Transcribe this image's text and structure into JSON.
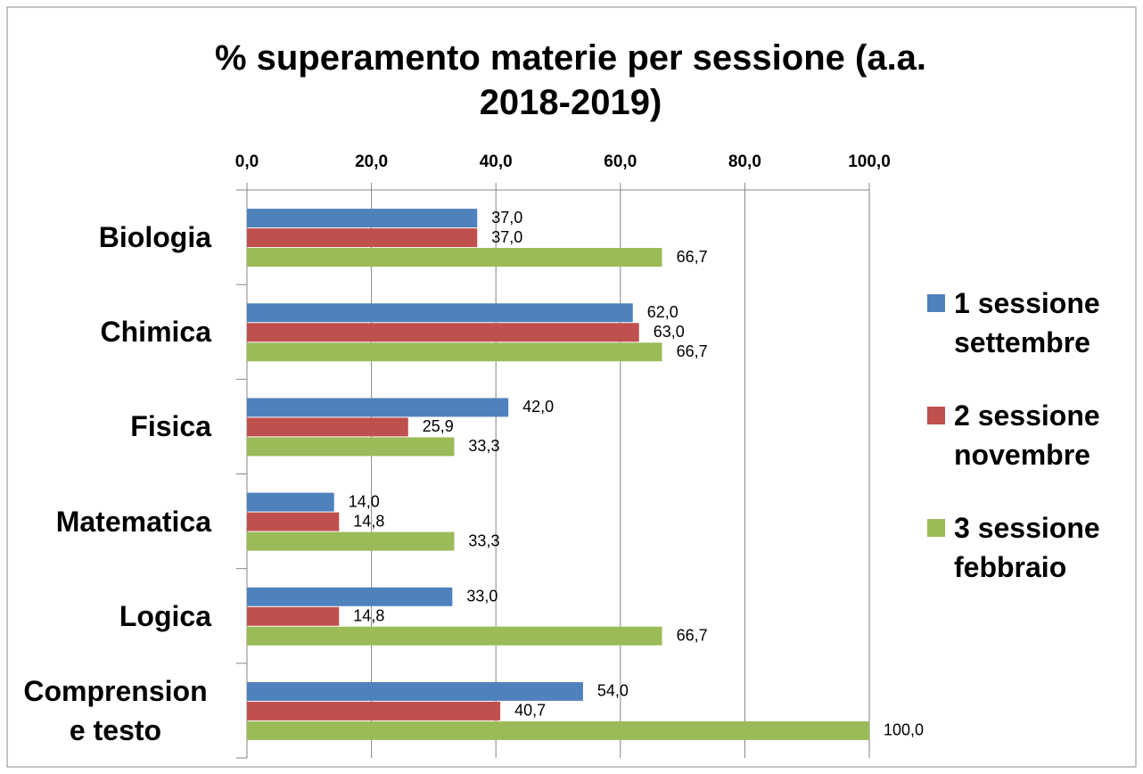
{
  "chart_data": {
    "type": "bar",
    "orientation": "horizontal",
    "title": "% superamento materie per sessione (a.a. 2018-2019)",
    "categories": [
      "Biologia",
      "Chimica",
      "Fisica",
      "Matematica",
      "Logica",
      "Comprensione testo"
    ],
    "series": [
      {
        "name": "1 sessione settembre",
        "color": "#4f81bd",
        "values": [
          37.0,
          62.0,
          42.0,
          14.0,
          33.0,
          54.0
        ],
        "value_labels": [
          "37,0",
          "62,0",
          "42,0",
          "14,0",
          "33,0",
          "54,0"
        ]
      },
      {
        "name": "2 sessione novembre",
        "color": "#c0504d",
        "values": [
          37.0,
          63.0,
          25.9,
          14.8,
          14.8,
          40.7
        ],
        "value_labels": [
          "37,0",
          "63,0",
          "25,9",
          "14,8",
          "14,8",
          "40,7"
        ]
      },
      {
        "name": "3 sessione febbraio",
        "color": "#9bbb59",
        "values": [
          66.7,
          66.7,
          33.3,
          33.3,
          66.7,
          100.0
        ],
        "value_labels": [
          "66,7",
          "66,7",
          "33,3",
          "33,3",
          "66,7",
          "100,0"
        ]
      }
    ],
    "xlim": [
      0,
      100
    ],
    "xticks": [
      {
        "value": 0,
        "label": "0,0"
      },
      {
        "value": 20,
        "label": "20,0"
      },
      {
        "value": 40,
        "label": "40,0"
      },
      {
        "value": 60,
        "label": "60,0"
      },
      {
        "value": 80,
        "label": "80,0"
      },
      {
        "value": 100,
        "label": "100,0"
      }
    ],
    "grid": true,
    "legend": "right"
  }
}
